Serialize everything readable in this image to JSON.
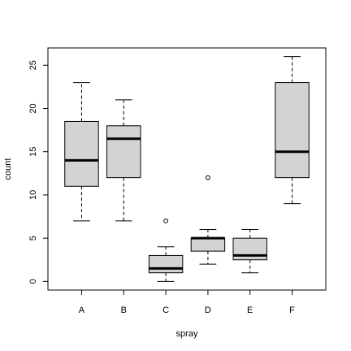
{
  "chart_data": {
    "type": "boxplot",
    "xlabel": "spray",
    "ylabel": "count",
    "ylim": [
      -1,
      27
    ],
    "yticks": [
      0,
      5,
      10,
      15,
      20,
      25
    ],
    "categories": [
      "A",
      "B",
      "C",
      "D",
      "E",
      "F"
    ],
    "box_fill": "#d3d3d3",
    "boxes": [
      {
        "label": "A",
        "whisker_low": 7,
        "q1": 11,
        "median": 14,
        "q3": 18.5,
        "whisker_high": 23,
        "outliers": []
      },
      {
        "label": "B",
        "whisker_low": 7,
        "q1": 12,
        "median": 16.5,
        "q3": 18,
        "whisker_high": 21,
        "outliers": []
      },
      {
        "label": "C",
        "whisker_low": 0,
        "q1": 1,
        "median": 1.5,
        "q3": 3,
        "whisker_high": 4,
        "outliers": [
          7
        ]
      },
      {
        "label": "D",
        "whisker_low": 2,
        "q1": 3.5,
        "median": 5,
        "q3": 5,
        "whisker_high": 6,
        "outliers": [
          12
        ]
      },
      {
        "label": "E",
        "whisker_low": 1,
        "q1": 2.5,
        "median": 3,
        "q3": 5,
        "whisker_high": 6,
        "outliers": []
      },
      {
        "label": "F",
        "whisker_low": 9,
        "q1": 12,
        "median": 15,
        "q3": 23,
        "whisker_high": 26,
        "outliers": []
      }
    ]
  }
}
